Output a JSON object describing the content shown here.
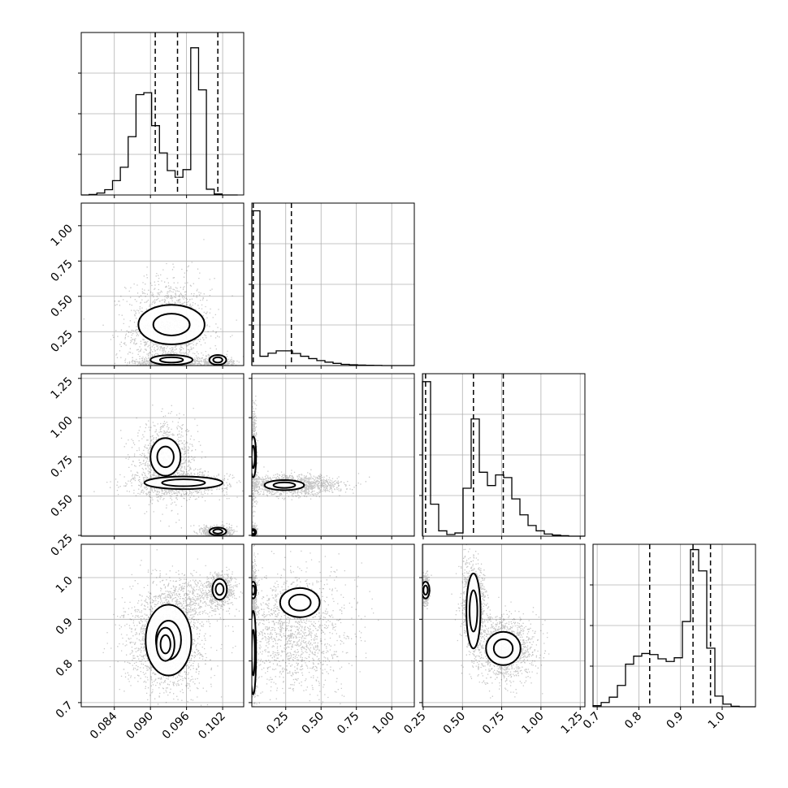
{
  "chart_data": {
    "type": "corner",
    "grid": true,
    "style": {
      "line_color": "#000000",
      "grid_color": "#b0b0b0",
      "hist2d_cmap": "greys"
    },
    "parameters": [
      {
        "range": [
          0.0785,
          0.1055
        ],
        "ticks": [
          0.084,
          0.09,
          0.096,
          0.102
        ],
        "tick_labels": [
          "0.084",
          "0.090",
          "0.096",
          "0.102"
        ],
        "quantiles": [
          0.0908,
          0.0945,
          0.1012
        ]
      },
      {
        "range": [
          0.01,
          1.16
        ],
        "ticks": [
          0.25,
          0.5,
          0.75,
          1.0
        ],
        "tick_labels": [
          "0.25",
          "0.50",
          "0.75",
          "1.00"
        ],
        "quantiles": [
          0.02,
          0.29
        ]
      },
      {
        "range": [
          0.245,
          1.28
        ],
        "ticks": [
          0.25,
          0.5,
          0.75,
          1.0,
          1.25
        ],
        "tick_labels": [
          "0.25",
          "0.50",
          "0.75",
          "1.00",
          "1.25"
        ],
        "quantiles": [
          0.265,
          0.57,
          0.76
        ]
      },
      {
        "range": [
          0.69,
          1.08
        ],
        "ticks": [
          0.7,
          0.8,
          0.9,
          1.0
        ],
        "tick_labels": [
          "0.7",
          "0.8",
          "0.9",
          "1.0"
        ],
        "quantiles": [
          0.826,
          0.93,
          0.972
        ]
      }
    ],
    "histograms": [
      {
        "param": 0,
        "bins": [
          0.0785,
          0.0798,
          0.0811,
          0.0824,
          0.0837,
          0.085,
          0.0863,
          0.0876,
          0.0889,
          0.0902,
          0.0915,
          0.0928,
          0.0941,
          0.0954,
          0.0967,
          0.098,
          0.0993,
          0.1006,
          0.1019,
          0.1032,
          0.1045
        ],
        "counts": [
          0,
          1,
          4,
          11,
          30,
          58,
          122,
          210,
          214,
          145,
          88,
          51,
          37,
          53,
          308,
          220,
          12,
          2,
          0,
          0
        ],
        "ymax": 340
      },
      {
        "param": 1,
        "bins": [
          0.01,
          0.0675,
          0.125,
          0.1825,
          0.24,
          0.2975,
          0.355,
          0.4125,
          0.47,
          0.5275,
          0.585,
          0.6425,
          0.7,
          0.7575,
          0.815,
          0.8725,
          0.93,
          0.9875,
          1.045,
          1.1025,
          1.16
        ],
        "counts": [
          1000,
          60,
          80,
          95,
          95,
          78,
          60,
          45,
          32,
          22,
          14,
          8,
          5,
          3,
          2,
          1,
          0,
          0,
          0,
          0
        ],
        "ymax": 1050
      },
      {
        "param": 2,
        "bins": [
          0.245,
          0.2968,
          0.3485,
          0.4003,
          0.452,
          0.5038,
          0.5555,
          0.6073,
          0.659,
          0.7108,
          0.7625,
          0.8143,
          0.866,
          0.9178,
          0.9695,
          1.0213,
          1.073,
          1.1248,
          1.1765,
          1.2283,
          1.28
        ],
        "counts": [
          290,
          60,
          10,
          3,
          6,
          90,
          220,
          120,
          95,
          115,
          110,
          70,
          40,
          20,
          10,
          4,
          2,
          1,
          0,
          0
        ],
        "ymax": 305
      },
      {
        "param": 3,
        "bins": [
          0.69,
          0.7095,
          0.729,
          0.7485,
          0.768,
          0.7875,
          0.807,
          0.8265,
          0.846,
          0.8655,
          0.885,
          0.9045,
          0.924,
          0.9435,
          0.963,
          0.9825,
          1.002,
          1.0215,
          1.041,
          1.0605,
          1.08
        ],
        "counts": [
          2,
          8,
          18,
          40,
          80,
          95,
          100,
          98,
          90,
          85,
          92,
          160,
          295,
          255,
          110,
          20,
          5,
          1,
          0,
          0
        ],
        "ymax": 305
      }
    ],
    "pairs": [
      {
        "x": 0,
        "y": 1,
        "modes": [
          {
            "c": [
              0.093,
              0.25
            ],
            "s": [
              0.0035,
              0.19
            ],
            "w": 0.55
          },
          {
            "c": [
              0.093,
              0.03
            ],
            "s": [
              0.003,
              0.02
            ],
            "w": 0.25
          },
          {
            "c": [
              0.101,
              0.03
            ],
            "s": [
              0.0012,
              0.02
            ],
            "w": 0.2
          }
        ],
        "contours": [
          {
            "c": [
              0.0935,
              0.3
            ],
            "r": [
              0.0055,
              0.14
            ]
          },
          {
            "c": [
              0.0935,
              0.05
            ],
            "r": [
              0.0035,
              0.035
            ]
          },
          {
            "c": [
              0.1012,
              0.05
            ],
            "r": [
              0.0014,
              0.035
            ]
          }
        ]
      },
      {
        "x": 0,
        "y": 2,
        "modes": [
          {
            "c": [
              0.0925,
              0.72
            ],
            "s": [
              0.0025,
              0.12
            ],
            "w": 0.4
          },
          {
            "c": [
              0.095,
              0.58
            ],
            "s": [
              0.004,
              0.035
            ],
            "w": 0.35
          },
          {
            "c": [
              0.101,
              0.27
            ],
            "s": [
              0.0012,
              0.02
            ],
            "w": 0.25
          }
        ],
        "contours": [
          {
            "c": [
              0.0925,
              0.75
            ],
            "r": [
              0.0025,
              0.12
            ]
          },
          {
            "c": [
              0.0955,
              0.585
            ],
            "r": [
              0.0065,
              0.04
            ]
          },
          {
            "c": [
              0.1012,
              0.275
            ],
            "r": [
              0.0014,
              0.025
            ]
          }
        ]
      },
      {
        "x": 0,
        "y": 3,
        "modes": [
          {
            "c": [
              0.0925,
              0.84
            ],
            "s": [
              0.0035,
              0.06
            ],
            "w": 0.55
          },
          {
            "c": [
              0.095,
              0.95
            ],
            "s": [
              0.003,
              0.03
            ],
            "w": 0.2
          },
          {
            "c": [
              0.1015,
              0.97
            ],
            "s": [
              0.0013,
              0.02
            ],
            "w": 0.25
          }
        ],
        "contours": [
          {
            "c": [
              0.093,
              0.85
            ],
            "r": [
              0.0038,
              0.085
            ]
          },
          {
            "c": [
              0.0925,
              0.84
            ],
            "r": [
              0.0015,
              0.04
            ]
          },
          {
            "c": [
              0.1015,
              0.972
            ],
            "r": [
              0.0012,
              0.025
            ]
          }
        ]
      },
      {
        "x": 1,
        "y": 2,
        "modes": [
          {
            "c": [
              0.29,
              0.57
            ],
            "s": [
              0.17,
              0.03
            ],
            "w": 0.55
          },
          {
            "c": [
              0.02,
              0.75
            ],
            "s": [
              0.01,
              0.15
            ],
            "w": 0.25
          },
          {
            "c": [
              0.02,
              0.27
            ],
            "s": [
              0.01,
              0.02
            ],
            "w": 0.2
          }
        ],
        "contours": [
          {
            "c": [
              0.24,
              0.57
            ],
            "r": [
              0.14,
              0.032
            ]
          },
          {
            "c": [
              0.02,
              0.75
            ],
            "r": [
              0.02,
              0.13
            ]
          },
          {
            "c": [
              0.02,
              0.27
            ],
            "r": [
              0.02,
              0.02
            ]
          }
        ]
      },
      {
        "x": 1,
        "y": 3,
        "modes": [
          {
            "c": [
              0.3,
              0.87
            ],
            "s": [
              0.2,
              0.07
            ],
            "w": 0.55
          },
          {
            "c": [
              0.02,
              0.85
            ],
            "s": [
              0.01,
              0.09
            ],
            "w": 0.3
          },
          {
            "c": [
              0.02,
              0.97
            ],
            "s": [
              0.01,
              0.02
            ],
            "w": 0.15
          }
        ],
        "contours": [
          {
            "c": [
              0.35,
              0.94
            ],
            "r": [
              0.14,
              0.035
            ]
          },
          {
            "c": [
              0.02,
              0.82
            ],
            "r": [
              0.02,
              0.1
            ]
          },
          {
            "c": [
              0.02,
              0.97
            ],
            "r": [
              0.02,
              0.02
            ]
          }
        ]
      },
      {
        "x": 2,
        "y": 3,
        "modes": [
          {
            "c": [
              0.57,
              0.94
            ],
            "s": [
              0.04,
              0.05
            ],
            "w": 0.35
          },
          {
            "c": [
              0.76,
              0.83
            ],
            "s": [
              0.1,
              0.04
            ],
            "w": 0.45
          },
          {
            "c": [
              0.265,
              0.97
            ],
            "s": [
              0.01,
              0.015
            ],
            "w": 0.2
          }
        ],
        "contours": [
          {
            "c": [
              0.57,
              0.92
            ],
            "r": [
              0.045,
              0.09
            ]
          },
          {
            "c": [
              0.76,
              0.83
            ],
            "r": [
              0.11,
              0.04
            ]
          },
          {
            "c": [
              0.265,
              0.97
            ],
            "r": [
              0.025,
              0.02
            ]
          }
        ]
      }
    ]
  }
}
